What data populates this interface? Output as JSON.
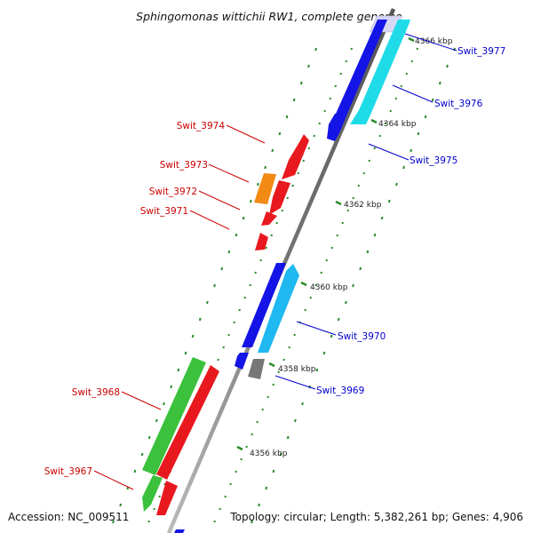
{
  "title": "Sphingomonas wittichii RW1, complete genome",
  "footer": {
    "accession": "Accession: NC_009511",
    "summary": "Topology: circular; Length: 5,382,261 bp; Genes: 4,906"
  },
  "ticks": [
    "4366 kbp",
    "4364 kbp",
    "4362 kbp",
    "4360 kbp",
    "4358 kbp",
    "4356 kbp"
  ],
  "genes_reverse": [
    {
      "label": "Swit_3974",
      "color": "#e8191e"
    },
    {
      "label": "Swit_3973",
      "color": "#f28a14"
    },
    {
      "label": "Swit_3972",
      "color": "#e8191e"
    },
    {
      "label": "Swit_3971",
      "color": "#e8191e"
    },
    {
      "label": "Swit_3968",
      "color": "#3bc13b"
    },
    {
      "label": "Swit_3967",
      "color": "#3bc13b"
    }
  ],
  "genes_forward": [
    {
      "label": "Swit_3977",
      "color": "#d7d7f4"
    },
    {
      "label": "Swit_3976",
      "color": "#1414e6"
    },
    {
      "label": "Swit_3975",
      "color": "#1414e6"
    },
    {
      "label": "Swit_3970",
      "color": "#1fb8f0"
    },
    {
      "label": "Swit_3969",
      "color": "#1414e6"
    }
  ],
  "colors": {
    "backbone": "#808080",
    "dots": "#2a8a2a",
    "reverse_label": "#cc0000",
    "forward_label": "#0000cc"
  }
}
